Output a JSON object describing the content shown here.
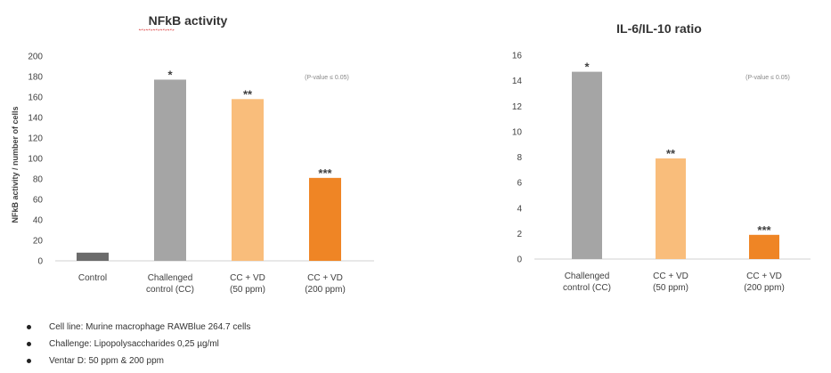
{
  "chart_data": [
    {
      "type": "bar",
      "title": "NFkB activity",
      "ylabel": "NFkB activity / number of cells",
      "xlabel": "",
      "ylim": [
        0,
        200
      ],
      "yticks": [
        0,
        20,
        40,
        60,
        80,
        100,
        120,
        140,
        160,
        180,
        200
      ],
      "categories": [
        [
          "Control"
        ],
        [
          "Challenged",
          "control (CC)"
        ],
        [
          "CC + VD",
          "(50 ppm)"
        ],
        [
          "CC + VD",
          "(200 ppm)"
        ]
      ],
      "values": [
        8,
        177,
        158,
        81
      ],
      "significance": [
        "",
        "*",
        "**",
        "***"
      ],
      "colors": [
        "#6b6b6b",
        "#a5a5a5",
        "#f9bd7b",
        "#ef8525"
      ],
      "annotation": "(P-value ≤ 0.05)",
      "grid": false
    },
    {
      "type": "bar",
      "title": "IL-6/IL-10 ratio",
      "ylabel": "",
      "xlabel": "",
      "ylim": [
        0,
        16
      ],
      "yticks": [
        0,
        2,
        4,
        6,
        8,
        10,
        12,
        14,
        16
      ],
      "categories": [
        [
          "Challenged",
          "control (CC)"
        ],
        [
          "CC + VD",
          "(50 ppm)"
        ],
        [
          "CC + VD",
          "(200 ppm)"
        ]
      ],
      "values": [
        14.7,
        7.9,
        1.9
      ],
      "significance": [
        "*",
        "**",
        "***"
      ],
      "colors": [
        "#a5a5a5",
        "#f9bd7b",
        "#ef8525"
      ],
      "annotation": "(P-value ≤ 0.05)",
      "grid": false
    }
  ],
  "notes": [
    "Cell line: Murine macrophage RAWBlue 264.7 cells",
    "Challenge: Lipopolysaccharides 0,25 µg/ml",
    "Ventar D: 50 ppm & 200 ppm"
  ]
}
